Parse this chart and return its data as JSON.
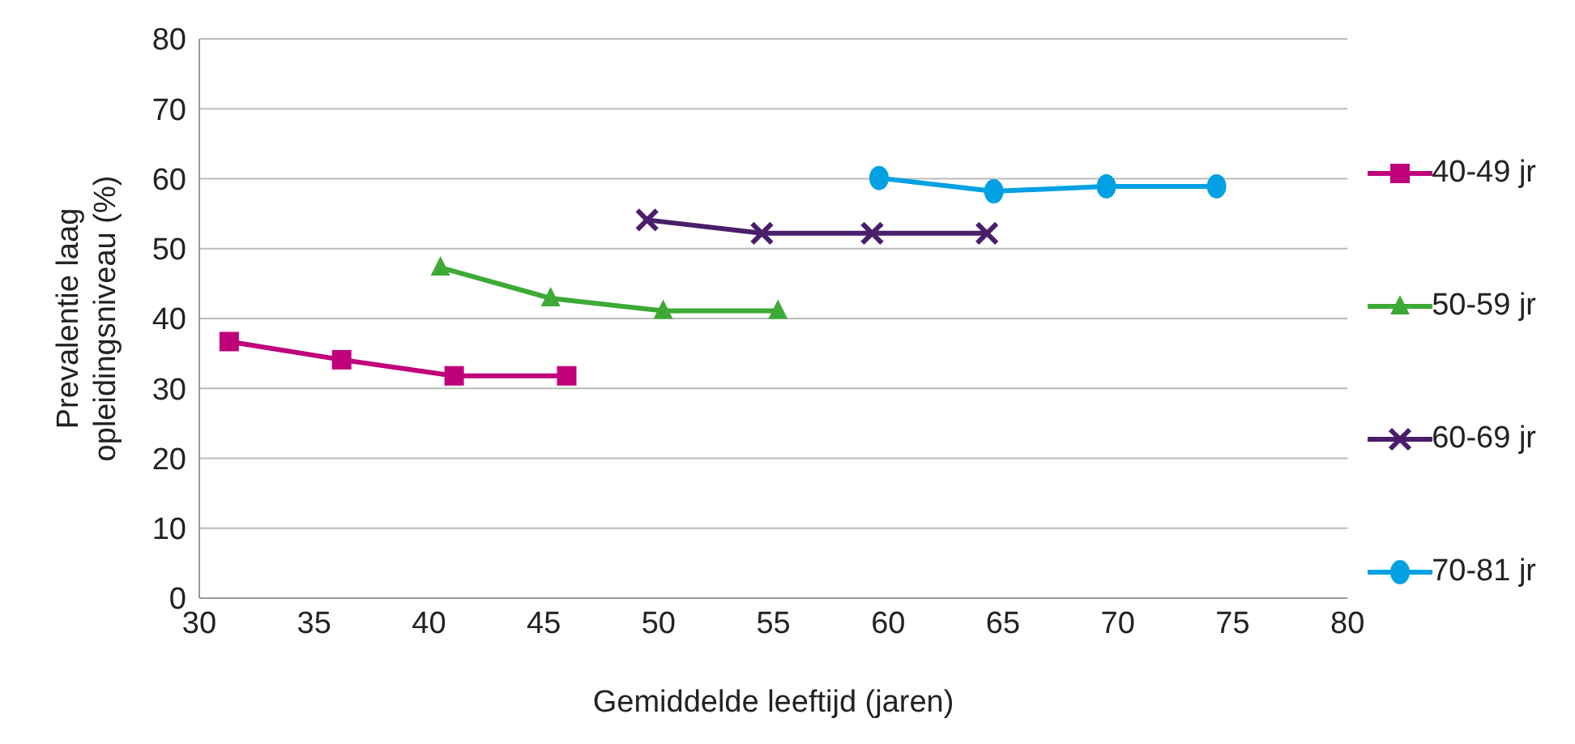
{
  "chart_data": {
    "type": "line",
    "xlabel": "Gemiddelde leeftijd (jaren)",
    "ylabel": "Prevalentie laag opleidingsniveau (%)",
    "xlim": [
      30,
      80
    ],
    "xticks": [
      30,
      35,
      40,
      45,
      50,
      55,
      60,
      65,
      70,
      75,
      80
    ],
    "ylim": [
      0,
      80
    ],
    "yticks": [
      0,
      10,
      20,
      30,
      40,
      50,
      60,
      70,
      80
    ],
    "grid": "y",
    "legend": "right",
    "line_style": "solid",
    "series": [
      {
        "name": "40-49 jr",
        "color": "#c0007a",
        "marker": "square",
        "x": [
          31.3,
          36.2,
          41.1,
          46.0
        ],
        "values": [
          36.7,
          34.1,
          31.8,
          31.8
        ]
      },
      {
        "name": "50-59 jr",
        "color": "#3daa35",
        "marker": "triangle",
        "x": [
          40.5,
          45.3,
          50.2,
          55.2
        ],
        "values": [
          47.3,
          42.9,
          41.1,
          41.1
        ]
      },
      {
        "name": "60-69 jr",
        "color": "#4b1e6b",
        "marker": "cross",
        "x": [
          49.5,
          54.5,
          59.3,
          64.3
        ],
        "values": [
          54.1,
          52.2,
          52.2,
          52.2
        ]
      },
      {
        "name": "70-81 jr",
        "color": "#00a0e3",
        "marker": "circle",
        "x": [
          59.6,
          64.6,
          69.5,
          74.3
        ],
        "values": [
          60.1,
          58.2,
          58.9,
          58.9
        ]
      }
    ]
  }
}
